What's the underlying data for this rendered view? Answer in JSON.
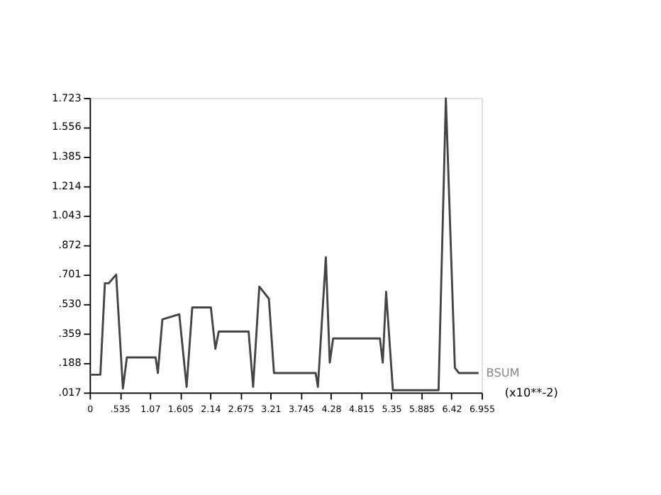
{
  "chart_data": {
    "type": "line",
    "xlabel": "(x10**-2)",
    "x": [
      0,
      0.19,
      0.27,
      0.34,
      0.47,
      0.59,
      0.66,
      1.17,
      1.21,
      1.29,
      1.59,
      1.72,
      1.82,
      2.15,
      2.23,
      2.29,
      2.82,
      2.9,
      3.01,
      3.18,
      3.27,
      3.31,
      4.01,
      4.05,
      4.19,
      4.26,
      4.32,
      5.15,
      5.2,
      5.26,
      5.38,
      6.19,
      6.32,
      6.48,
      6.55,
      6.9
    ],
    "series": [
      {
        "name": "BSUM",
        "color": "#444444",
        "values": [
          0.12,
          0.12,
          0.65,
          0.65,
          0.7,
          0.04,
          0.22,
          0.22,
          0.13,
          0.44,
          0.47,
          0.05,
          0.51,
          0.51,
          0.27,
          0.37,
          0.37,
          0.05,
          0.63,
          0.56,
          0.13,
          0.13,
          0.13,
          0.05,
          0.8,
          0.19,
          0.33,
          0.33,
          0.19,
          0.6,
          0.03,
          0.03,
          1.72,
          0.16,
          0.13,
          0.13
        ]
      }
    ],
    "xlim": [
      0,
      6.955
    ],
    "ylim": [
      0.017,
      1.723
    ],
    "xticks": [
      0,
      {
        "value": 0.535,
        "label": ".535"
      },
      1.07,
      1.605,
      2.14,
      2.675,
      3.21,
      3.745,
      4.28,
      4.815,
      5.35,
      5.885,
      6.42,
      6.955
    ],
    "yticks": [
      {
        "value": 0.017,
        "label": ".017"
      },
      {
        "value": 0.188,
        "label": ".188"
      },
      {
        "value": 0.359,
        "label": ".359"
      },
      {
        "value": 0.53,
        "label": ".530"
      },
      {
        "value": 0.701,
        "label": ".701"
      },
      {
        "value": 0.872,
        "label": ".872"
      },
      1.043,
      1.214,
      1.385,
      1.556,
      1.723
    ],
    "grid": false,
    "legend": false,
    "marker": "none",
    "line_style": "solid"
  }
}
